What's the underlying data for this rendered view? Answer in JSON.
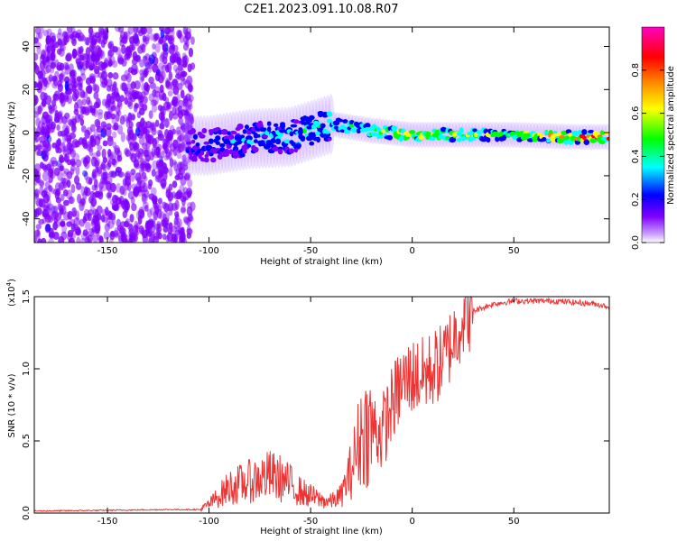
{
  "chart_data": [
    {
      "type": "heatmap",
      "title": "C2E1.2023.091.10.08.R07",
      "xlabel": "Height of straight line (km)",
      "ylabel": "Frequency (Hz)",
      "xlim": [
        -186,
        97
      ],
      "ylim": [
        -51,
        49
      ],
      "xticks": [
        -150,
        -100,
        -50,
        0,
        50
      ],
      "xtick_labels": [
        "-150",
        "-100",
        "-50",
        "0",
        "50"
      ],
      "yticks": [
        -40,
        -20,
        0,
        20,
        40
      ],
      "ytick_labels": [
        "-40",
        "-20",
        "0",
        "20",
        "40"
      ],
      "colorbar": {
        "label": "Normalized spectral amplitude",
        "range": [
          0,
          1
        ],
        "ticks": [
          0.0,
          0.2,
          0.4,
          0.6,
          0.8
        ],
        "tick_labels": [
          "0.0",
          "0.2",
          "0.4",
          "0.6",
          "0.8"
        ],
        "colors": [
          "#ffffff",
          "#8000ff",
          "#0000ff",
          "#00ffff",
          "#00ff00",
          "#ffff00",
          "#ff8000",
          "#ff0000",
          "#ff00c0"
        ]
      },
      "ridge": [
        {
          "x": -100,
          "y": -6,
          "amp": 0.25
        },
        {
          "x": -80,
          "y": -3,
          "amp": 0.3
        },
        {
          "x": -60,
          "y": -2,
          "amp": 0.35
        },
        {
          "x": -40,
          "y": 4,
          "amp": 0.4
        },
        {
          "x": -20,
          "y": 1,
          "amp": 0.55
        },
        {
          "x": 0,
          "y": -1,
          "amp": 0.6
        },
        {
          "x": 20,
          "y": -1,
          "amp": 0.55
        },
        {
          "x": 50,
          "y": -1,
          "amp": 0.5
        },
        {
          "x": 80,
          "y": -2,
          "amp": 0.7
        },
        {
          "x": 95,
          "y": -2,
          "amp": 0.8
        }
      ]
    },
    {
      "type": "line",
      "xlabel": "Height of straight line (km)",
      "ylabel": "SNR (10 * v/v)",
      "y_scale_label": "(x10",
      "y_scale_exponent": "4",
      "y_scale_close": ")",
      "xlim": [
        -186,
        97
      ],
      "ylim": [
        0,
        1.5
      ],
      "xticks": [
        -150,
        -100,
        -50,
        0,
        50
      ],
      "xtick_labels": [
        "-150",
        "-100",
        "-50",
        "0",
        "50"
      ],
      "yticks": [
        0.0,
        0.5,
        1.0,
        1.5
      ],
      "ytick_labels": [
        "0.0",
        "0.5",
        "1.0",
        "1.5"
      ],
      "color": "#ee3333",
      "series": [
        {
          "name": "SNR",
          "x": [
            -186,
            -150,
            -120,
            -105,
            -100,
            -95,
            -90,
            -85,
            -80,
            -75,
            -70,
            -65,
            -60,
            -55,
            -50,
            -45,
            -40,
            -35,
            -30,
            -25,
            -20,
            -15,
            -10,
            -5,
            0,
            5,
            10,
            15,
            20,
            25,
            30,
            40,
            50,
            60,
            70,
            80,
            90,
            97
          ],
          "y": [
            0.01,
            0.015,
            0.02,
            0.02,
            0.06,
            0.12,
            0.18,
            0.2,
            0.22,
            0.24,
            0.26,
            0.24,
            0.2,
            0.15,
            0.12,
            0.09,
            0.08,
            0.12,
            0.3,
            0.55,
            0.6,
            0.55,
            0.75,
            0.9,
            0.95,
            0.95,
            1.0,
            1.05,
            1.2,
            1.35,
            1.4,
            1.45,
            1.47,
            1.47,
            1.47,
            1.46,
            1.45,
            1.43
          ]
        }
      ]
    }
  ]
}
